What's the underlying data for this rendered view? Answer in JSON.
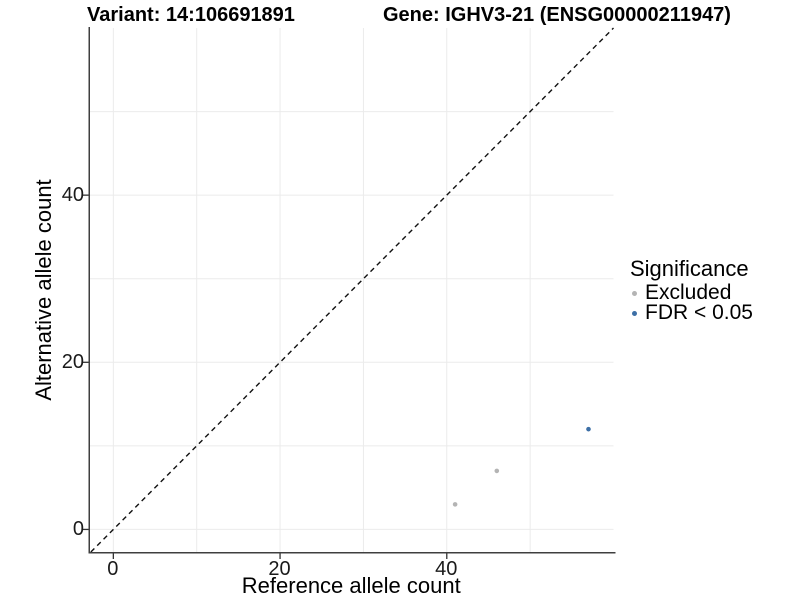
{
  "chart_data": {
    "type": "scatter",
    "title_left": "Variant: 14:106691891",
    "title_right": "Gene: IGHV3-21 (ENSG00000211947)",
    "xlabel": "Reference allele count",
    "ylabel": "Alternative allele count",
    "xlim": [
      -2.8,
      60
    ],
    "ylim": [
      -2.7,
      60
    ],
    "xticks": [
      0,
      20,
      40
    ],
    "yticks": [
      0,
      20,
      40
    ],
    "xtick_labels": [
      "0",
      "20",
      "40"
    ],
    "ytick_labels": [
      "0",
      "20",
      "40"
    ],
    "minor_gridlines": [
      10,
      30,
      50
    ],
    "grid": "on",
    "identity_line": {
      "equation": "y = x",
      "style": "dashed",
      "color": "#111111"
    },
    "series": [
      {
        "name": "Excluded",
        "color": "#b4b4b4",
        "points": [
          {
            "x": 41,
            "y": 3
          },
          {
            "x": 46,
            "y": 7
          }
        ]
      },
      {
        "name": "FDR < 0.05",
        "color": "#3d6fa6",
        "points": [
          {
            "x": 57,
            "y": 12
          }
        ]
      }
    ],
    "legend": {
      "title": "Significance",
      "position": "right",
      "items": [
        {
          "label": "Excluded",
          "color": "#b4b4b4"
        },
        {
          "label": "FDR < 0.05",
          "color": "#3d6fa6"
        }
      ]
    },
    "colors": {
      "gridline": "#ebebeb",
      "axis_line": "#3f3f3f",
      "tick_mark": "#333333",
      "text": "#000000"
    }
  }
}
